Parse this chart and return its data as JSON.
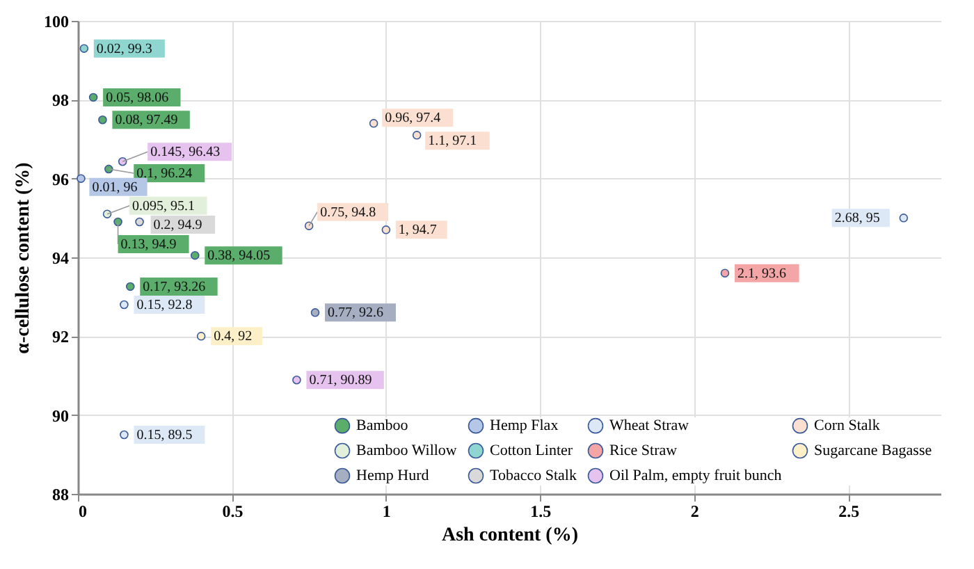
{
  "chart_data": {
    "type": "scatter",
    "xlabel": "Ash content (%)",
    "ylabel": "α-cellulose content (%)",
    "xlim": [
      0,
      2.8
    ],
    "xticks": [
      0,
      0.5,
      1,
      1.5,
      2,
      2.5
    ],
    "ylim": [
      88,
      100
    ],
    "yticks": [
      88,
      90,
      92,
      94,
      96,
      98,
      100
    ],
    "grid": true,
    "legend": "bottom right",
    "marker": "circle",
    "series": [
      {
        "name": "Bamboo",
        "color": "#5aad6a",
        "x": [
          0.05,
          0.08,
          0.1,
          0.13,
          0.38,
          0.17
        ],
        "values": [
          98.06,
          97.49,
          96.24,
          94.9,
          94.05,
          93.26
        ],
        "value_labels": [
          "0.05, 98.06",
          "0.08, 97.49",
          "0.1, 96.24",
          "0.13, 94.9",
          "0.38, 94.05",
          "0.17, 93.26"
        ]
      },
      {
        "name": "Bamboo Willow",
        "color": "#e2efda",
        "x": [
          0.095
        ],
        "values": [
          95.1
        ],
        "value_labels": [
          "0.095, 95.1"
        ]
      },
      {
        "name": "Hemp Hurd",
        "color": "#a6afc2",
        "x": [
          0.77
        ],
        "values": [
          92.6
        ],
        "value_labels": [
          "0.77, 92.6"
        ]
      },
      {
        "name": "Hemp Flax",
        "color": "#b4c7e7",
        "x": [
          0.01
        ],
        "values": [
          96
        ],
        "value_labels": [
          "0.01, 96"
        ]
      },
      {
        "name": "Cotton Linter",
        "color": "#8fd6d0",
        "x": [
          0.02
        ],
        "values": [
          99.3
        ],
        "value_labels": [
          "0.02, 99.3"
        ]
      },
      {
        "name": "Tobacco Stalk",
        "color": "#d9d9d9",
        "x": [
          0.2
        ],
        "values": [
          94.9
        ],
        "value_labels": [
          "0.2, 94.9"
        ]
      },
      {
        "name": "Wheat Straw",
        "color": "#dde8f6",
        "x": [
          0.15,
          0.15,
          2.68
        ],
        "values": [
          92.8,
          89.5,
          95
        ],
        "value_labels": [
          "0.15, 92.8",
          "0.15, 89.5",
          "2.68, 95"
        ]
      },
      {
        "name": "Rice Straw",
        "color": "#f4a6a6",
        "x": [
          2.1
        ],
        "values": [
          93.6
        ],
        "value_labels": [
          "2.1, 93.6"
        ]
      },
      {
        "name": "Oil Palm, empty fruit bunch",
        "color": "#e6c3ee",
        "x": [
          0.145,
          0.71
        ],
        "values": [
          96.43,
          90.89
        ],
        "value_labels": [
          "0.145, 96.43",
          "0.71, 90.89"
        ]
      },
      {
        "name": "Corn Stalk",
        "color": "#fbe0d2",
        "x": [
          0.96,
          1.1,
          0.75,
          1
        ],
        "values": [
          97.4,
          97.1,
          94.8,
          94.7
        ],
        "value_labels": [
          "0.96, 97.4",
          "1.1, 97.1",
          "0.75, 94.8",
          "1, 94.7"
        ]
      },
      {
        "name": "Sugarcane Bagasse",
        "color": "#fdf0c8",
        "x": [
          0.4
        ],
        "values": [
          92
        ],
        "value_labels": [
          "0.4, 92"
        ]
      }
    ]
  }
}
